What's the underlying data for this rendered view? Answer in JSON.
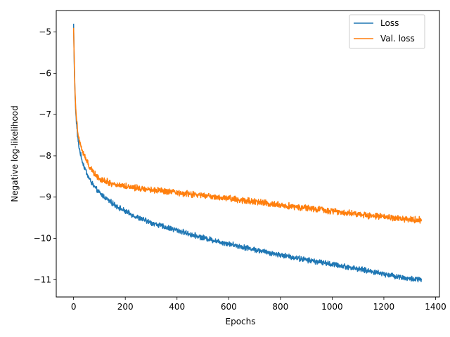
{
  "chart_data": {
    "type": "line",
    "title": "",
    "xlabel": "Epochs",
    "ylabel": "Negative log-likelihood",
    "xlim": [
      -67,
      1415
    ],
    "ylim": [
      -11.42,
      -4.48
    ],
    "xticks": [
      0,
      200,
      400,
      600,
      800,
      1000,
      1200,
      1400
    ],
    "yticks": [
      -5,
      -6,
      -7,
      -8,
      -9,
      -10,
      -11
    ],
    "xtick_labels": [
      "0",
      "200",
      "400",
      "600",
      "800",
      "1000",
      "1200",
      "1400"
    ],
    "ytick_labels": [
      "−5",
      "−6",
      "−7",
      "−8",
      "−9",
      "−10",
      "−11"
    ],
    "grid": false,
    "legend_position": "top-right",
    "series": [
      {
        "name": "Loss",
        "color": "#1f77b4",
        "x": [
          0,
          3,
          6,
          10,
          15,
          20,
          30,
          40,
          50,
          60,
          80,
          100,
          150,
          200,
          250,
          300,
          350,
          400,
          450,
          500,
          550,
          600,
          650,
          700,
          750,
          800,
          850,
          900,
          950,
          1000,
          1050,
          1100,
          1150,
          1200,
          1250,
          1300,
          1345
        ],
        "values": [
          -4.8,
          -5.9,
          -6.6,
          -7.1,
          -7.5,
          -7.75,
          -8.05,
          -8.25,
          -8.4,
          -8.55,
          -8.75,
          -8.9,
          -9.15,
          -9.35,
          -9.5,
          -9.62,
          -9.72,
          -9.8,
          -9.9,
          -9.98,
          -10.06,
          -10.13,
          -10.2,
          -10.27,
          -10.34,
          -10.4,
          -10.46,
          -10.52,
          -10.57,
          -10.63,
          -10.68,
          -10.74,
          -10.8,
          -10.86,
          -10.92,
          -10.98,
          -11.0
        ],
        "noise": 0.05
      },
      {
        "name": "Val. loss",
        "color": "#ff7f0e",
        "x": [
          0,
          3,
          6,
          10,
          15,
          20,
          30,
          40,
          50,
          60,
          80,
          100,
          150,
          200,
          250,
          300,
          350,
          400,
          450,
          500,
          550,
          600,
          650,
          700,
          750,
          800,
          850,
          900,
          950,
          1000,
          1050,
          1100,
          1150,
          1200,
          1250,
          1300,
          1345
        ],
        "values": [
          -4.9,
          -5.8,
          -6.5,
          -7.0,
          -7.35,
          -7.55,
          -7.8,
          -7.98,
          -8.12,
          -8.25,
          -8.42,
          -8.55,
          -8.68,
          -8.73,
          -8.78,
          -8.82,
          -8.86,
          -8.9,
          -8.93,
          -8.96,
          -9.0,
          -9.03,
          -9.07,
          -9.11,
          -9.15,
          -9.19,
          -9.23,
          -9.26,
          -9.3,
          -9.34,
          -9.37,
          -9.41,
          -9.45,
          -9.48,
          -9.52,
          -9.55,
          -9.55
        ],
        "noise": 0.06
      }
    ]
  }
}
